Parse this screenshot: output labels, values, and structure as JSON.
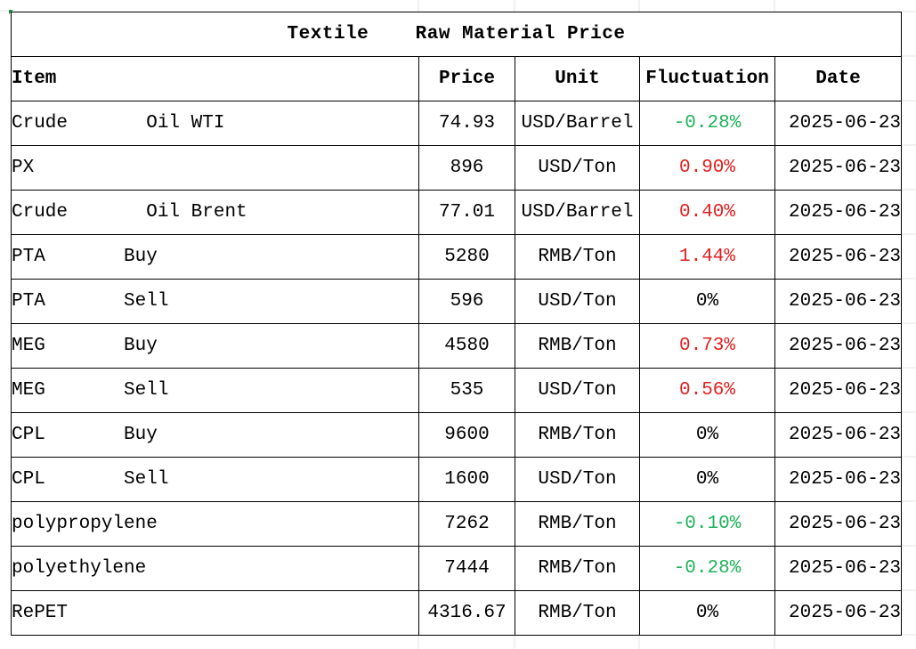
{
  "title": "Textile    Raw Material Price",
  "headers": {
    "item": "Item",
    "price": "Price",
    "unit": "Unit",
    "fluctuation": "Fluctuation",
    "date": "Date"
  },
  "colors": {
    "down": "#1fb35a",
    "up": "#e02020",
    "flat": "#000000"
  },
  "rows": [
    {
      "item": "Crude       Oil WTI",
      "price": "74.93",
      "unit": "USD/Barrel",
      "fluctuation": "-0.28%",
      "trend": "down",
      "date": "2025-06-23"
    },
    {
      "item": "PX",
      "price": "896",
      "unit": "USD/Ton",
      "fluctuation": "0.90%",
      "trend": "up",
      "date": "2025-06-23"
    },
    {
      "item": "Crude       Oil Brent",
      "price": "77.01",
      "unit": "USD/Barrel",
      "fluctuation": "0.40%",
      "trend": "up",
      "date": "2025-06-23"
    },
    {
      "item": "PTA       Buy",
      "price": "5280",
      "unit": "RMB/Ton",
      "fluctuation": "1.44%",
      "trend": "up",
      "date": "2025-06-23"
    },
    {
      "item": "PTA       Sell",
      "price": "596",
      "unit": "USD/Ton",
      "fluctuation": "0%",
      "trend": "flat",
      "date": "2025-06-23"
    },
    {
      "item": "MEG       Buy",
      "price": "4580",
      "unit": "RMB/Ton",
      "fluctuation": "0.73%",
      "trend": "up",
      "date": "2025-06-23"
    },
    {
      "item": "MEG       Sell",
      "price": "535",
      "unit": "USD/Ton",
      "fluctuation": "0.56%",
      "trend": "up",
      "date": "2025-06-23"
    },
    {
      "item": "CPL       Buy",
      "price": "9600",
      "unit": "RMB/Ton",
      "fluctuation": "0%",
      "trend": "flat",
      "date": "2025-06-23"
    },
    {
      "item": "CPL       Sell",
      "price": "1600",
      "unit": "USD/Ton",
      "fluctuation": "0%",
      "trend": "flat",
      "date": "2025-06-23"
    },
    {
      "item": "polypropylene",
      "price": "7262",
      "unit": "RMB/Ton",
      "fluctuation": "-0.10%",
      "trend": "down",
      "date": "2025-06-23"
    },
    {
      "item": "polyethylene",
      "price": "7444",
      "unit": "RMB/Ton",
      "fluctuation": "-0.28%",
      "trend": "down",
      "date": "2025-06-23"
    },
    {
      "item": "RePET",
      "price": "4316.67",
      "unit": "RMB/Ton",
      "fluctuation": "0%",
      "trend": "flat",
      "date": "2025-06-23"
    }
  ]
}
